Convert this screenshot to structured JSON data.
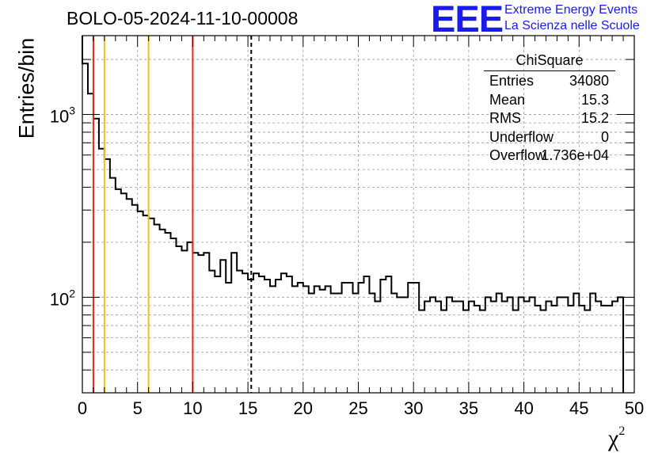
{
  "header": {
    "title": "BOLO-05-2024-11-10-00008",
    "logo_text": "EEE",
    "org_line1": "Extreme Energy Events",
    "org_line2": "La Scienza nelle Scuole"
  },
  "stats": {
    "name": "ChiSquare",
    "rows": [
      {
        "key": "Entries",
        "value": "34080"
      },
      {
        "key": "Mean",
        "value": "15.3"
      },
      {
        "key": "RMS",
        "value": "15.2"
      },
      {
        "key": "Underflow",
        "value": "0"
      },
      {
        "key": "Overflow",
        "value": "1.736e+04"
      }
    ]
  },
  "chart_data": {
    "type": "histogram",
    "title": "BOLO-05-2024-11-10-00008",
    "xlabel": "χ",
    "xlabel_sup": "2",
    "ylabel": "Entries/bin",
    "xlim": [
      0,
      50
    ],
    "ylim": [
      30,
      2700
    ],
    "yscale": "log",
    "grid": true,
    "bin_width": 0.5,
    "x_ticks": [
      "0",
      "5",
      "10",
      "15",
      "20",
      "25",
      "30",
      "35",
      "40",
      "45",
      "50"
    ],
    "y_ticks": [
      {
        "value": 100,
        "base": "10",
        "exp": "2"
      },
      {
        "value": 1000,
        "base": "10",
        "exp": "3"
      }
    ],
    "values": [
      1900,
      1300,
      950,
      650,
      570,
      450,
      390,
      370,
      345,
      320,
      295,
      280,
      270,
      250,
      235,
      225,
      210,
      190,
      180,
      200,
      175,
      170,
      175,
      140,
      130,
      160,
      120,
      175,
      140,
      135,
      125,
      135,
      130,
      125,
      115,
      125,
      135,
      130,
      115,
      120,
      115,
      105,
      115,
      110,
      115,
      105,
      105,
      120,
      120,
      105,
      120,
      130,
      105,
      95,
      125,
      130,
      105,
      100,
      100,
      120,
      120,
      85,
      95,
      100,
      95,
      85,
      100,
      95,
      95,
      85,
      95,
      90,
      85,
      100,
      95,
      105,
      95,
      100,
      85,
      100,
      95,
      100,
      90,
      85,
      95,
      90,
      100,
      100,
      90,
      105,
      90,
      85,
      105,
      95,
      90,
      90,
      95,
      100
    ],
    "vlines": [
      {
        "x": 1,
        "color": "#e8281f",
        "style": "solid"
      },
      {
        "x": 2,
        "color": "#f0c020",
        "style": "solid"
      },
      {
        "x": 6,
        "color": "#f0c020",
        "style": "solid"
      },
      {
        "x": 10,
        "color": "#e8281f",
        "style": "solid"
      },
      {
        "x": 15.3,
        "color": "#000000",
        "style": "dashed"
      }
    ]
  }
}
